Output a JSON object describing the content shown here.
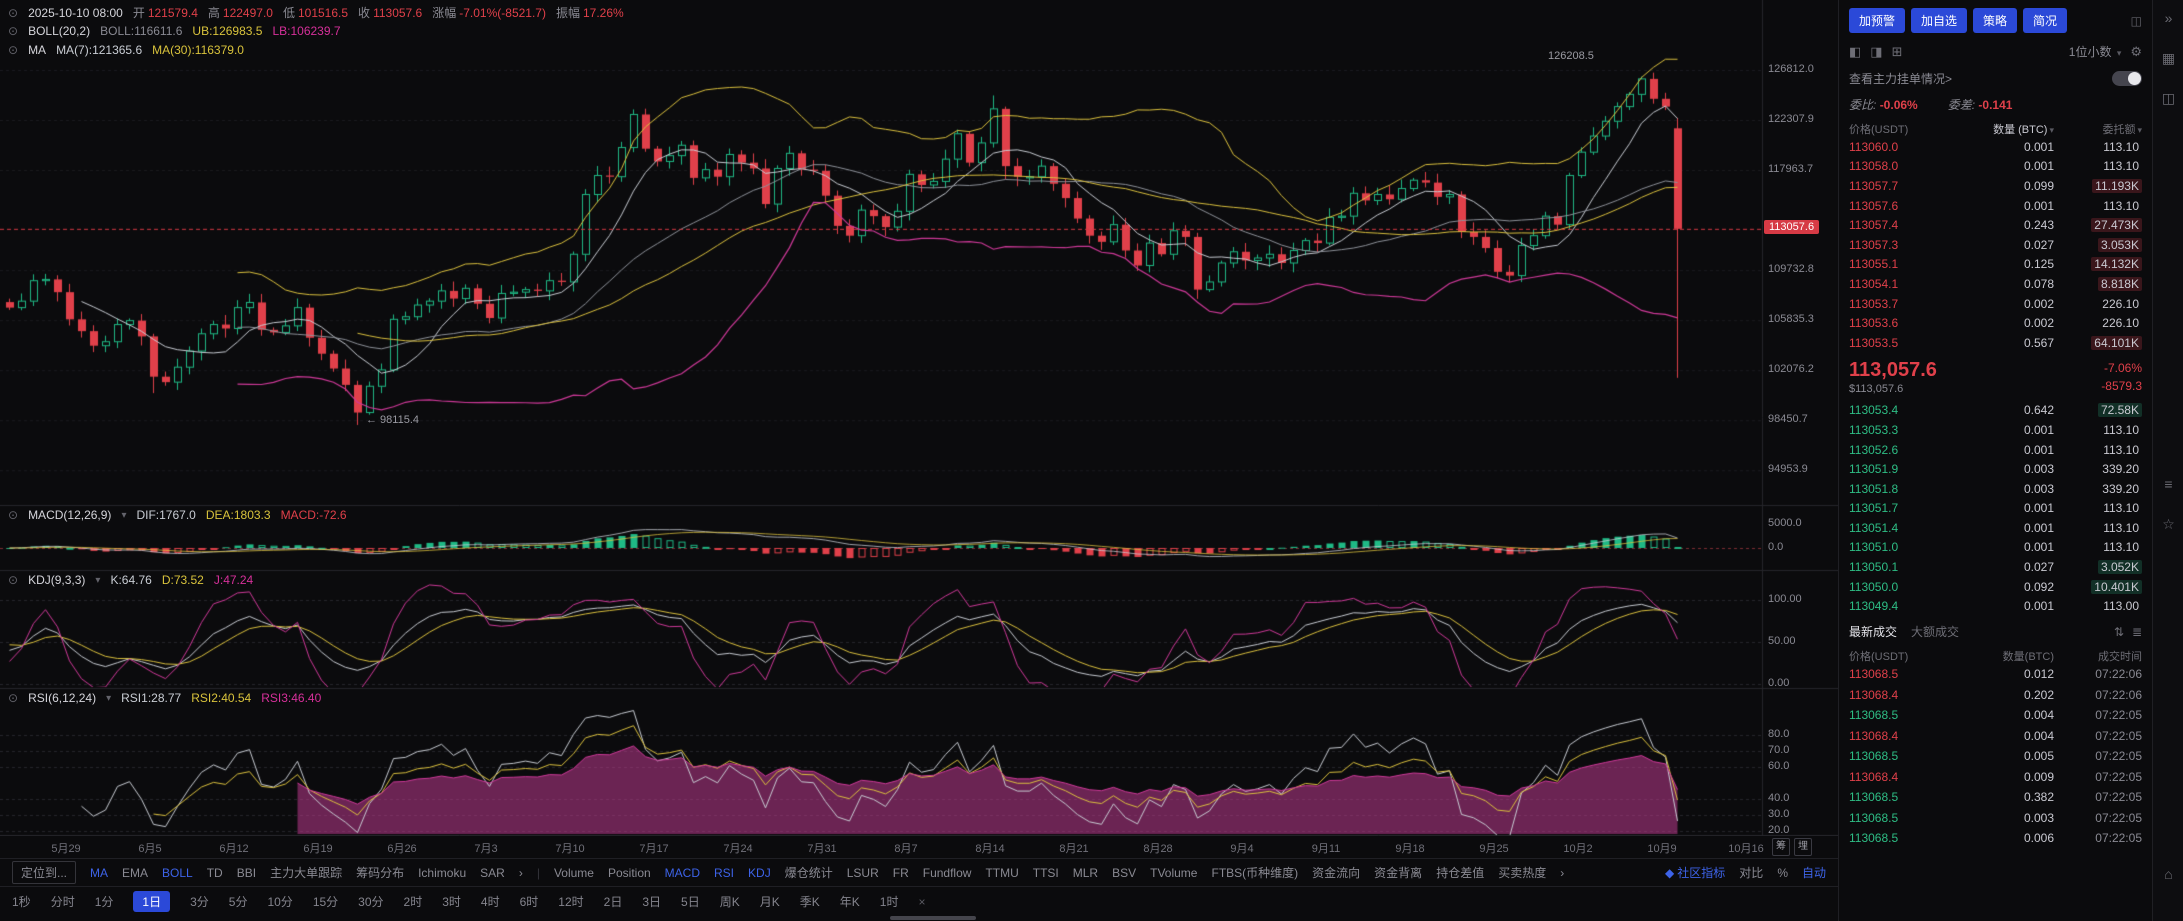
{
  "glyphs": {
    "clock": "⊙",
    "dot": "⊙",
    "caret": "▾",
    "gear": "⚙",
    "layout_a": "◧",
    "layout_b": "◨",
    "layout_c": "⊞",
    "list": "≣",
    "swap": "⇅",
    "chevron": "›",
    "community": "◆",
    "panel": "◫"
  },
  "chart": {
    "ohlc": {
      "time": "2025-10-10 08:00",
      "o_l": "开",
      "o": "121579.4",
      "h_l": "高",
      "h": "122497.0",
      "l_l": "低",
      "l": "101516.5",
      "c_l": "收",
      "c": "113057.6",
      "chg_l": "涨幅",
      "chg": "-7.01%(-8521.7)",
      "amp_l": "振幅",
      "amp": "17.26%"
    },
    "boll": {
      "title": "BOLL(20,2)",
      "mid": "BOLL:116611.6",
      "ub": "UB:126983.5",
      "lb": "LB:106239.7"
    },
    "ma": {
      "title": "MA",
      "ma7": "MA(7):121365.6",
      "ma30": "MA(30):116379.0"
    },
    "macd": {
      "title": "MACD(12,26,9)",
      "dif": "DIF:1767.0",
      "dea": "DEA:1803.3",
      "macd": "MACD:-72.6"
    },
    "kdj": {
      "title": "KDJ(9,3,3)",
      "k": "K:64.76",
      "d": "D:73.52",
      "j": "J:47.24"
    },
    "rsi": {
      "title": "RSI(6,12,24)",
      "r1": "RSI1:28.77",
      "r2": "RSI2:40.54",
      "r3": "RSI3:46.40"
    },
    "annotations": {
      "peak": "126208.5",
      "trough": "← 98115.4"
    },
    "current_price_label": "113057.6",
    "side_buttons": [
      "筹",
      "埋"
    ]
  },
  "chart_data": {
    "type": "candlestick",
    "symbol_close": 113057.6,
    "scale": "log",
    "price_ticks": [
      {
        "label": "126812.0",
        "value": 126812.0
      },
      {
        "label": "122307.9",
        "value": 122307.9
      },
      {
        "label": "117963.7",
        "value": 117963.7
      },
      {
        "label": "109732.8",
        "value": 109732.8
      },
      {
        "label": "105835.3",
        "value": 105835.3
      },
      {
        "label": "102076.2",
        "value": 102076.2
      },
      {
        "label": "98450.7",
        "value": 98450.7
      },
      {
        "label": "94953.9",
        "value": 94953.9
      }
    ],
    "current_price": {
      "label": "113057.6",
      "value": 113057.6
    },
    "macd_ticks": [
      {
        "label": "5000.0",
        "value": 5000
      },
      {
        "label": "0.0",
        "value": 0
      }
    ],
    "kdj_ticks": [
      {
        "label": "100.00",
        "value": 100
      },
      {
        "label": "50.00",
        "value": 50
      },
      {
        "label": "0.00",
        "value": 0
      }
    ],
    "rsi_ticks": [
      {
        "label": "80.0",
        "value": 80
      },
      {
        "label": "70.0",
        "value": 70
      },
      {
        "label": "60.0",
        "value": 60
      },
      {
        "label": "40.0",
        "value": 40
      },
      {
        "label": "30.0",
        "value": 30
      },
      {
        "label": "20.0",
        "value": 20
      }
    ],
    "dates": [
      "5月29",
      "6月5",
      "6月12",
      "6月19",
      "6月26",
      "7月3",
      "7月10",
      "7月17",
      "7月24",
      "7月31",
      "8月7",
      "8月14",
      "8月21",
      "8月28",
      "9月4",
      "9月11",
      "9月18",
      "9月25",
      "10月2",
      "10月9",
      "10月16"
    ],
    "closes": [
      106800,
      107300,
      108900,
      109000,
      108000,
      105900,
      105000,
      103900,
      104200,
      105500,
      105800,
      104600,
      101600,
      101200,
      102300,
      103500,
      104800,
      105500,
      105200,
      106800,
      107200,
      105100,
      104900,
      105400,
      106800,
      104500,
      103300,
      102200,
      101000,
      99000,
      100900,
      102100,
      105900,
      106100,
      107000,
      107300,
      108100,
      107500,
      108300,
      107100,
      106000,
      107900,
      108000,
      108200,
      108100,
      108900,
      108800,
      111000,
      115900,
      117500,
      117400,
      119900,
      122800,
      119800,
      118700,
      119200,
      120100,
      117300,
      118000,
      117400,
      119300,
      118600,
      118100,
      115100,
      118100,
      119400,
      118000,
      117900,
      115800,
      113300,
      112500,
      114600,
      114100,
      113200,
      114500,
      117600,
      116700,
      117000,
      118900,
      121100,
      118600,
      120300,
      123300,
      118300,
      117400,
      117400,
      118300,
      116800,
      115600,
      113900,
      112500,
      112000,
      113400,
      111300,
      110100,
      111900,
      111000,
      112900,
      112400,
      108200,
      108800,
      110300,
      111200,
      110500,
      110700,
      111000,
      110300,
      111300,
      112100,
      111900,
      114000,
      114100,
      116000,
      115400,
      115900,
      115500,
      116400,
      117100,
      116900,
      115700,
      115900,
      112800,
      112400,
      111500,
      109600,
      109300,
      111700,
      112500,
      114100,
      113400,
      117500,
      119500,
      120900,
      122200,
      123500,
      124600,
      126000,
      124200,
      123500,
      113057.6
    ],
    "specials": {
      "12": [
        104600,
        104800,
        100400,
        101600
      ],
      "29": [
        101000,
        101300,
        98115.4,
        99000
      ],
      "52": [
        119900,
        123250,
        119500,
        122800
      ],
      "82": [
        120300,
        124500,
        119900,
        123300
      ],
      "83": [
        123300,
        123500,
        117200,
        118300
      ],
      "136": [
        124600,
        126208.5,
        123900,
        126000
      ],
      "139": [
        121579.4,
        122497.0,
        101516.5,
        113057.6
      ]
    },
    "indicators": {
      "boll": [
        20,
        2
      ],
      "ma": [
        7,
        30
      ],
      "macd": [
        12,
        26,
        9
      ],
      "kdj": [
        9,
        3,
        3
      ],
      "rsi": [
        6,
        12,
        24
      ]
    }
  },
  "indicator_bar": {
    "locate": "定位到...",
    "left": [
      {
        "label": "MA",
        "active": true
      },
      {
        "label": "EMA"
      },
      {
        "label": "BOLL",
        "active": true
      },
      {
        "label": "TD"
      },
      {
        "label": "BBI"
      },
      {
        "label": "主力大单跟踪"
      },
      {
        "label": "筹码分布"
      },
      {
        "label": "Ichimoku"
      },
      {
        "label": "SAR"
      },
      {
        "label": "›"
      },
      {
        "label": "|",
        "divider": true
      },
      {
        "label": "Volume"
      },
      {
        "label": "Position"
      },
      {
        "label": "MACD",
        "active": true
      },
      {
        "label": "RSI",
        "active": true
      },
      {
        "label": "KDJ",
        "active": true
      },
      {
        "label": "爆仓统计"
      },
      {
        "label": "LSUR"
      },
      {
        "label": "FR"
      },
      {
        "label": "Fundflow"
      },
      {
        "label": "TTMU"
      },
      {
        "label": "TTSI"
      },
      {
        "label": "MLR"
      },
      {
        "label": "BSV"
      },
      {
        "label": "TVolume"
      },
      {
        "label": "FTBS(币种维度)"
      },
      {
        "label": "资金流向"
      },
      {
        "label": "资金背离"
      },
      {
        "label": "持仓差值"
      },
      {
        "label": "买卖热度"
      },
      {
        "label": "›"
      }
    ],
    "right": [
      {
        "label": "社区指标",
        "active": true,
        "icon": true
      },
      {
        "label": "对比"
      },
      {
        "label": "%"
      },
      {
        "label": "自动",
        "active": true
      }
    ]
  },
  "timeframe_bar": {
    "items": [
      {
        "label": "1秒"
      },
      {
        "label": "分时"
      },
      {
        "label": "1分"
      },
      {
        "label": "1日",
        "active": true
      },
      {
        "label": "3分"
      },
      {
        "label": "5分"
      },
      {
        "label": "10分"
      },
      {
        "label": "15分"
      },
      {
        "label": "30分"
      },
      {
        "label": "2时"
      },
      {
        "label": "3时"
      },
      {
        "label": "4时"
      },
      {
        "label": "6时"
      },
      {
        "label": "12时"
      },
      {
        "label": "2日"
      },
      {
        "label": "3日"
      },
      {
        "label": "5日"
      },
      {
        "label": "周K"
      },
      {
        "label": "月K"
      },
      {
        "label": "季K"
      },
      {
        "label": "年K"
      },
      {
        "label": "1时"
      },
      {
        "label": "×",
        "dim": true
      }
    ]
  },
  "orderbook": {
    "buttons": [
      "加预警",
      "加自选",
      "策略",
      "简况"
    ],
    "decimal": "1位小数",
    "link": "查看主力挂单情况>",
    "ratio_label": "委比:",
    "ratio": "-0.06%",
    "diff_label": "委差:",
    "diff": "-0.141",
    "headers": [
      "价格(USDT)",
      "数量 (BTC)",
      "委托额"
    ],
    "asks": [
      {
        "p": "113060.0",
        "q": "0.001",
        "a": "113.10"
      },
      {
        "p": "113058.0",
        "q": "0.001",
        "a": "113.10"
      },
      {
        "p": "113057.7",
        "q": "0.099",
        "a": "11.193K",
        "hl": true
      },
      {
        "p": "113057.6",
        "q": "0.001",
        "a": "113.10"
      },
      {
        "p": "113057.4",
        "q": "0.243",
        "a": "27.473K",
        "hl": true
      },
      {
        "p": "113057.3",
        "q": "0.027",
        "a": "3.053K",
        "hl": true
      },
      {
        "p": "113055.1",
        "q": "0.125",
        "a": "14.132K",
        "hl": true
      },
      {
        "p": "113054.1",
        "q": "0.078",
        "a": "8.818K",
        "hl": true
      },
      {
        "p": "113053.7",
        "q": "0.002",
        "a": "226.10"
      },
      {
        "p": "113053.6",
        "q": "0.002",
        "a": "226.10"
      },
      {
        "p": "113053.5",
        "q": "0.567",
        "a": "64.101K",
        "hl": true
      }
    ],
    "last": {
      "price": "113,057.6",
      "pct": "-7.06%",
      "usd": "$113,057.6",
      "diff": "-8579.3"
    },
    "bids": [
      {
        "p": "113053.4",
        "q": "0.642",
        "a": "72.58K",
        "hl": true
      },
      {
        "p": "113053.3",
        "q": "0.001",
        "a": "113.10"
      },
      {
        "p": "113052.6",
        "q": "0.001",
        "a": "113.10"
      },
      {
        "p": "113051.9",
        "q": "0.003",
        "a": "339.20"
      },
      {
        "p": "113051.8",
        "q": "0.003",
        "a": "339.20"
      },
      {
        "p": "113051.7",
        "q": "0.001",
        "a": "113.10"
      },
      {
        "p": "113051.4",
        "q": "0.001",
        "a": "113.10"
      },
      {
        "p": "113051.0",
        "q": "0.001",
        "a": "113.10"
      },
      {
        "p": "113050.1",
        "q": "0.027",
        "a": "3.052K",
        "hl": true
      },
      {
        "p": "113050.0",
        "q": "0.092",
        "a": "10.401K",
        "hl": true
      },
      {
        "p": "113049.4",
        "q": "0.001",
        "a": "113.00"
      }
    ],
    "tabs": [
      "最新成交",
      "大额成交"
    ],
    "trade_headers": [
      "价格(USDT)",
      "数量(BTC)",
      "成交时间"
    ],
    "trades": [
      {
        "p": "113068.5",
        "q": "0.012",
        "t": "07:22:06",
        "side": "down"
      },
      {
        "p": "113068.4",
        "q": "0.202",
        "t": "07:22:06",
        "side": "down"
      },
      {
        "p": "113068.5",
        "q": "0.004",
        "t": "07:22:05",
        "side": "up"
      },
      {
        "p": "113068.4",
        "q": "0.004",
        "t": "07:22:05",
        "side": "down"
      },
      {
        "p": "113068.5",
        "q": "0.005",
        "t": "07:22:05",
        "side": "up"
      },
      {
        "p": "113068.4",
        "q": "0.009",
        "t": "07:22:05",
        "side": "down"
      },
      {
        "p": "113068.5",
        "q": "0.382",
        "t": "07:22:05",
        "side": "up"
      },
      {
        "p": "113068.5",
        "q": "0.003",
        "t": "07:22:05",
        "side": "up"
      },
      {
        "p": "113068.5",
        "q": "0.006",
        "t": "07:22:05",
        "side": "up"
      }
    ]
  },
  "right_strip": [
    {
      "name": "collapse-icon",
      "glyph": "»"
    },
    {
      "name": "grid-icon",
      "glyph": "▦"
    },
    {
      "name": "layout-icon",
      "glyph": "◫"
    },
    {
      "name": "list-icon",
      "glyph": "≡"
    },
    {
      "name": "star-icon",
      "glyph": "☆"
    },
    {
      "name": "home-icon",
      "glyph": "⌂"
    }
  ]
}
